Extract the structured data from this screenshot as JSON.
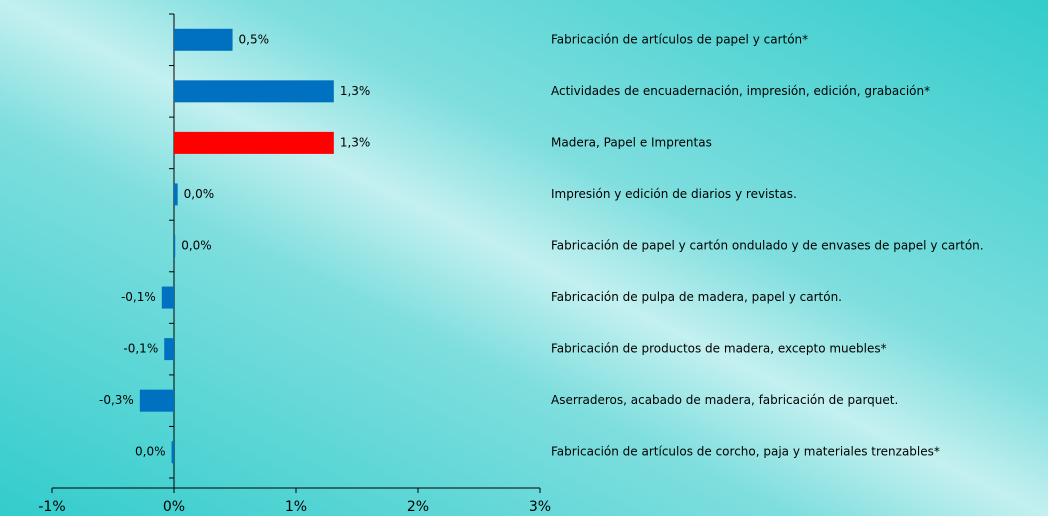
{
  "chart_data": {
    "type": "barh",
    "categories": [
      "Fabricación de artículos de papel y cartón*",
      "Actividades de encuadernación, impresión, edición, grabación*",
      "Madera, Papel e Imprentas",
      "Impresión y edición de diarios y revistas.",
      "Fabricación de papel y cartón ondulado y de envases de papel y cartón.",
      "Fabricación de pulpa de madera, papel y cartón.",
      "Fabricación de productos de madera, excepto muebles*",
      "Aserraderos, acabado de madera, fabricación de parquet.",
      "Fabricación de artículos de corcho, paja y materiales trenzables*"
    ],
    "values": [
      0.48,
      1.31,
      1.31,
      0.03,
      0.01,
      -0.1,
      -0.08,
      -0.28,
      -0.02
    ],
    "value_labels": [
      "0,5%",
      "1,3%",
      "1,3%",
      "0,0%",
      "0,0%",
      "-0,1%",
      "-0,1%",
      "-0,3%",
      "0,0%"
    ],
    "colors": [
      "#0070c0",
      "#0070c0",
      "#ff0000",
      "#0070c0",
      "#0070c0",
      "#0070c0",
      "#0070c0",
      "#0070c0",
      "#0070c0"
    ],
    "xlim": [
      -1,
      3
    ],
    "xticks": [
      {
        "value": -1,
        "label": "-1%"
      },
      {
        "value": 0,
        "label": "0%"
      },
      {
        "value": 1,
        "label": "1%"
      },
      {
        "value": 2,
        "label": "2%"
      },
      {
        "value": 3,
        "label": "3%"
      }
    ]
  }
}
